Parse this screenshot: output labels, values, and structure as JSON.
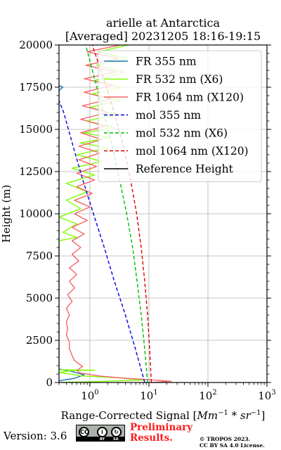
{
  "chart_data": {
    "type": "line",
    "title": "arielle at Antarctica",
    "subtitle": "[Averaged] 20231205 18:16-19:15",
    "xlabel_text": "Range-Corrected Signal [",
    "xlabel_math": "Mm",
    "xlabel_sup1": "−1",
    "xlabel_mid": " * sr",
    "xlabel_sup2": "−1",
    "xlabel_end": "]",
    "ylabel": "Height (m)",
    "xscale": "log",
    "xlim": [
      0.3,
      1000
    ],
    "ylim": [
      0,
      20000
    ],
    "x_ticks": [
      {
        "value": 1,
        "base": "10",
        "exp": "0"
      },
      {
        "value": 10,
        "base": "10",
        "exp": "1"
      },
      {
        "value": 100,
        "base": "10",
        "exp": "2"
      },
      {
        "value": 1000,
        "base": "10",
        "exp": "3"
      }
    ],
    "y_ticks": [
      "0",
      "2500",
      "5000",
      "7500",
      "10000",
      "12500",
      "15000",
      "17500",
      "20000"
    ],
    "grid": true,
    "legend_position": "top-right",
    "series": [
      {
        "name": "FR 355 nm",
        "color": "#1f77b4",
        "style": "solid",
        "points": [
          [
            0.3,
            100
          ],
          [
            0.55,
            250
          ],
          [
            0.8,
            450
          ],
          [
            0.5,
            650
          ],
          [
            0.3,
            800
          ],
          [
            0.3,
            17300
          ],
          [
            0.35,
            17500
          ],
          [
            0.3,
            17600
          ]
        ]
      },
      {
        "name": "FR 532 nm (X6)",
        "color": "#7fff00",
        "style": "solid",
        "points": [
          [
            0.3,
            0
          ],
          [
            1.5,
            60
          ],
          [
            8,
            150
          ],
          [
            3,
            280
          ],
          [
            0.7,
            390
          ],
          [
            0.3,
            600
          ],
          [
            0.5,
            710
          ],
          [
            1.2,
            730
          ],
          [
            0.3,
            760
          ],
          [
            0.3,
            8400
          ],
          [
            0.6,
            8600
          ],
          [
            0.35,
            8900
          ],
          [
            0.6,
            9400
          ],
          [
            0.3,
            9800
          ],
          [
            0.7,
            10300
          ],
          [
            0.4,
            10800
          ],
          [
            0.9,
            11300
          ],
          [
            0.4,
            11800
          ],
          [
            1.2,
            12300
          ],
          [
            0.5,
            12700
          ],
          [
            1.6,
            13100
          ],
          [
            0.6,
            13500
          ],
          [
            2.0,
            13900
          ],
          [
            0.7,
            14200
          ],
          [
            2.2,
            14500
          ],
          [
            0.8,
            14800
          ],
          [
            2.6,
            15100
          ],
          [
            0.9,
            15500
          ],
          [
            2.8,
            15900
          ],
          [
            1.0,
            16300
          ],
          [
            3.2,
            16700
          ],
          [
            1.1,
            17100
          ],
          [
            3.5,
            17500
          ],
          [
            1.2,
            17900
          ],
          [
            3.8,
            18400
          ],
          [
            1.3,
            18800
          ],
          [
            4.2,
            19200
          ],
          [
            1.4,
            19600
          ],
          [
            4.5,
            20000
          ]
        ]
      },
      {
        "name": "FR 1064 nm (X120)",
        "color": "#f56565",
        "style": "solid",
        "points": [
          [
            11,
            0
          ],
          [
            24,
            70
          ],
          [
            12,
            150
          ],
          [
            4,
            250
          ],
          [
            1.5,
            380
          ],
          [
            0.7,
            560
          ],
          [
            0.6,
            700
          ],
          [
            0.75,
            950
          ],
          [
            0.55,
            1300
          ],
          [
            0.5,
            1600
          ],
          [
            0.45,
            2000
          ],
          [
            0.45,
            2400
          ],
          [
            0.4,
            2800
          ],
          [
            0.42,
            3200
          ],
          [
            0.4,
            3600
          ],
          [
            0.45,
            4000
          ],
          [
            0.4,
            4400
          ],
          [
            0.5,
            4800
          ],
          [
            0.42,
            5200
          ],
          [
            0.55,
            5600
          ],
          [
            0.45,
            6000
          ],
          [
            0.6,
            6400
          ],
          [
            0.45,
            6800
          ],
          [
            0.65,
            7200
          ],
          [
            0.5,
            7600
          ],
          [
            0.7,
            8000
          ],
          [
            0.5,
            8400
          ],
          [
            0.8,
            8800
          ],
          [
            0.5,
            9200
          ],
          [
            0.9,
            9600
          ],
          [
            0.55,
            10000
          ],
          [
            1.0,
            10400
          ],
          [
            0.55,
            10800
          ],
          [
            1.1,
            11200
          ],
          [
            0.6,
            11600
          ],
          [
            1.2,
            12000
          ],
          [
            0.6,
            12400
          ],
          [
            1.3,
            12800
          ],
          [
            0.65,
            13200
          ],
          [
            1.5,
            13600
          ],
          [
            0.65,
            14000
          ],
          [
            1.6,
            14400
          ],
          [
            0.7,
            14800
          ],
          [
            1.8,
            15200
          ],
          [
            0.7,
            15600
          ],
          [
            2.0,
            16000
          ],
          [
            0.75,
            16400
          ],
          [
            2.2,
            16800
          ],
          [
            0.8,
            17200
          ],
          [
            2.4,
            17600
          ],
          [
            0.8,
            18000
          ],
          [
            2.7,
            18400
          ],
          [
            0.85,
            18800
          ],
          [
            3.0,
            19200
          ],
          [
            0.9,
            19600
          ],
          [
            3.3,
            20000
          ]
        ]
      },
      {
        "name": "mol 355 nm",
        "color": "#0000dd",
        "style": "dashed",
        "points": [
          [
            8.5,
            0
          ],
          [
            5.9,
            2000
          ],
          [
            4.0,
            4000
          ],
          [
            2.6,
            6000
          ],
          [
            1.75,
            8000
          ],
          [
            1.15,
            10000
          ],
          [
            0.76,
            12000
          ],
          [
            0.52,
            14000
          ],
          [
            0.36,
            16000
          ],
          [
            0.3,
            16700
          ]
        ]
      },
      {
        "name": "mol 532 nm (X6)",
        "color": "#00bb00",
        "style": "dashed",
        "points": [
          [
            9.5,
            0
          ],
          [
            8.5,
            2000
          ],
          [
            7.4,
            4000
          ],
          [
            6.3,
            6000
          ],
          [
            5.3,
            8000
          ],
          [
            4.2,
            10000
          ],
          [
            3.2,
            12000
          ],
          [
            2.4,
            14000
          ],
          [
            1.7,
            16000
          ],
          [
            1.2,
            18000
          ],
          [
            0.85,
            20000
          ]
        ]
      },
      {
        "name": "mol 1064 nm (X120)",
        "color": "#dd0000",
        "style": "dashed",
        "points": [
          [
            11,
            0
          ],
          [
            10.3,
            2000
          ],
          [
            9.5,
            4000
          ],
          [
            8.5,
            6000
          ],
          [
            7.4,
            8000
          ],
          [
            6.2,
            10000
          ],
          [
            4.9,
            12000
          ],
          [
            3.7,
            14000
          ],
          [
            2.6,
            16000
          ],
          [
            1.7,
            18000
          ],
          [
            1.1,
            20000
          ]
        ]
      },
      {
        "name": "Reference Height",
        "color": "#000000",
        "style": "solid",
        "points": []
      }
    ]
  },
  "footer": {
    "version": "Version: 3.6",
    "cc": "CC",
    "by": "BY",
    "sa": "SA",
    "prelim_line1": "Preliminary",
    "prelim_line2": "Results.",
    "copyright_line1": "© TROPOS 2023.",
    "copyright_line2": "CC BY SA 4.0 License."
  }
}
